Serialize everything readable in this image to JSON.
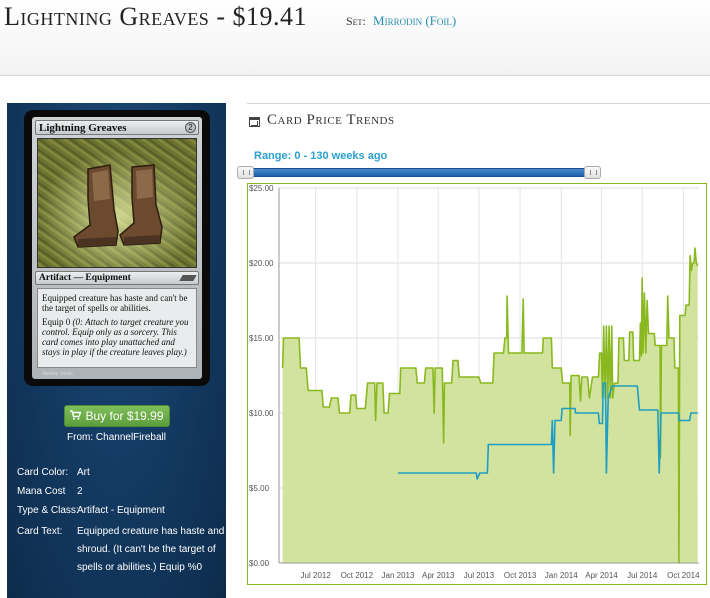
{
  "header": {
    "title": "Lightning Greaves - $19.41",
    "set_label": "Set:",
    "set_name": "Mirrodin (Foil)"
  },
  "card_image": {
    "name": "Lightning Greaves",
    "type_line": "Artifact — Equipment",
    "rules_text": "Equipped creature has haste and can't be the target of spells or abilities.",
    "equip_cost": "Equip 0",
    "equip_reminder": "(0: Attach to target creature you control. Equip only as a sorcery. This card comes into play unattached and stays in play if the creature leaves play.)",
    "artist": "Jeremy Jarvis",
    "mana_symbol": "2"
  },
  "buy": {
    "label": "Buy for $19.99",
    "icon": "cart-icon",
    "from": "From: ChannelFireball"
  },
  "info": [
    {
      "label": "Card Color:",
      "value": "Art"
    },
    {
      "label": "Mana Cost",
      "value": "2"
    },
    {
      "label": "Type & Class:",
      "value": "Artifact - Equipment"
    },
    {
      "label": "Card Text:",
      "value": "Equipped creature has haste and shroud. (It can't be the target of spells or abilities.) Equip %0"
    }
  ],
  "trends": {
    "title": "Card Price Trends",
    "icon": "calendar-icon",
    "range_label": "Range: 0 - 130 weeks ago",
    "slider_range": [
      0,
      130
    ]
  },
  "colors": {
    "sidebar": "#12375d",
    "fill": "#d2e39f",
    "line_green": "#8ab81f",
    "line_blue": "#1f9ec4",
    "link": "#2a8db0",
    "buy_button": "#6aad45"
  },
  "chart_data": {
    "type": "area",
    "x_unit": "date",
    "xlim": [
      "2012-04-10",
      "2014-11-05"
    ],
    "ylim": [
      0,
      25
    ],
    "y_ticks": [
      "$0.00",
      "$5.00",
      "$10.00",
      "$15.00",
      "$20.00",
      "$25.00"
    ],
    "x_ticks": [
      {
        "date": "2012-07-01",
        "label": "Jul 2012"
      },
      {
        "date": "2012-10-01",
        "label": "Oct 2012"
      },
      {
        "date": "2013-01-01",
        "label": "Jan 2013"
      },
      {
        "date": "2013-04-01",
        "label": "Apr 2013"
      },
      {
        "date": "2013-07-01",
        "label": "Jul 2013"
      },
      {
        "date": "2013-10-01",
        "label": "Oct 2013"
      },
      {
        "date": "2014-01-01",
        "label": "Jan 2014"
      },
      {
        "date": "2014-04-01",
        "label": "Apr 2014"
      },
      {
        "date": "2014-07-01",
        "label": "Jul 2014"
      },
      {
        "date": "2014-10-01",
        "label": "Oct 2014"
      }
    ],
    "grid": true,
    "series": [
      {
        "color": "#8ab81f",
        "fill": "#d2e39f",
        "points": [
          [
            "2012-04-18",
            13
          ],
          [
            "2012-04-20",
            15
          ],
          [
            "2012-05-25",
            15
          ],
          [
            "2012-05-28",
            13
          ],
          [
            "2012-06-10",
            13
          ],
          [
            "2012-06-14",
            11.5
          ],
          [
            "2012-07-15",
            11.5
          ],
          [
            "2012-07-18",
            10.4
          ],
          [
            "2012-08-01",
            10.4
          ],
          [
            "2012-08-05",
            11
          ],
          [
            "2012-08-20",
            11
          ],
          [
            "2012-08-23",
            10
          ],
          [
            "2012-09-15",
            10
          ],
          [
            "2012-09-18",
            11.2
          ],
          [
            "2012-09-28",
            11.2
          ],
          [
            "2012-10-01",
            10.3
          ],
          [
            "2012-10-20",
            10.3
          ],
          [
            "2012-10-25",
            12
          ],
          [
            "2012-11-10",
            12
          ],
          [
            "2012-11-12",
            9.5
          ],
          [
            "2012-11-15",
            12
          ],
          [
            "2012-11-28",
            12
          ],
          [
            "2012-12-01",
            10
          ],
          [
            "2012-12-10",
            10
          ],
          [
            "2012-12-13",
            11.3
          ],
          [
            "2013-01-05",
            11.3
          ],
          [
            "2013-01-07",
            13
          ],
          [
            "2013-02-10",
            13
          ],
          [
            "2013-02-13",
            12
          ],
          [
            "2013-03-01",
            12
          ],
          [
            "2013-03-04",
            13
          ],
          [
            "2013-03-20",
            13
          ],
          [
            "2013-03-23",
            10
          ],
          [
            "2013-03-25",
            13
          ],
          [
            "2013-04-10",
            13
          ],
          [
            "2013-04-13",
            8
          ],
          [
            "2013-04-15",
            12
          ],
          [
            "2013-05-01",
            12
          ],
          [
            "2013-05-04",
            13.5
          ],
          [
            "2013-05-15",
            13.5
          ],
          [
            "2013-05-18",
            12.4
          ],
          [
            "2013-07-01",
            12.4
          ],
          [
            "2013-07-05",
            12
          ],
          [
            "2013-08-01",
            12
          ],
          [
            "2013-08-04",
            14
          ],
          [
            "2013-08-25",
            14
          ],
          [
            "2013-08-28",
            15
          ],
          [
            "2013-09-01",
            15
          ],
          [
            "2013-09-02",
            17.8
          ],
          [
            "2013-09-05",
            14
          ],
          [
            "2013-10-05",
            14
          ],
          [
            "2013-10-08",
            17.6
          ],
          [
            "2013-10-10",
            14
          ],
          [
            "2013-11-20",
            14
          ],
          [
            "2013-11-22",
            15
          ],
          [
            "2013-12-10",
            15
          ],
          [
            "2013-12-12",
            13
          ],
          [
            "2014-01-01",
            13
          ],
          [
            "2014-01-04",
            12
          ],
          [
            "2014-01-20",
            12
          ],
          [
            "2014-01-21",
            8.5
          ],
          [
            "2014-01-23",
            12.5
          ],
          [
            "2014-02-10",
            12.5
          ],
          [
            "2014-02-13",
            10.8
          ],
          [
            "2014-02-16",
            12.4
          ],
          [
            "2014-03-01",
            12.4
          ],
          [
            "2014-03-05",
            11
          ],
          [
            "2014-03-12",
            12.4
          ],
          [
            "2014-03-25",
            12.4
          ],
          [
            "2014-03-28",
            14
          ],
          [
            "2014-04-01",
            14
          ],
          [
            "2014-04-03",
            11
          ],
          [
            "2014-04-06",
            15.8
          ],
          [
            "2014-04-09",
            11
          ],
          [
            "2014-04-12",
            15.8
          ],
          [
            "2014-04-15",
            11
          ],
          [
            "2014-04-18",
            15.8
          ],
          [
            "2014-04-21",
            11
          ],
          [
            "2014-04-24",
            15.8
          ],
          [
            "2014-04-26",
            11
          ],
          [
            "2014-04-30",
            12
          ],
          [
            "2014-05-08",
            12
          ],
          [
            "2014-05-10",
            15
          ],
          [
            "2014-05-20",
            15
          ],
          [
            "2014-05-22",
            13.5
          ],
          [
            "2014-06-01",
            13.5
          ],
          [
            "2014-06-03",
            15.4
          ],
          [
            "2014-06-10",
            15.4
          ],
          [
            "2014-06-12",
            13.5
          ],
          [
            "2014-06-25",
            13.5
          ],
          [
            "2014-06-27",
            16
          ],
          [
            "2014-06-29",
            13.8
          ],
          [
            "2014-07-01",
            19
          ],
          [
            "2014-07-03",
            14
          ],
          [
            "2014-07-06",
            18
          ],
          [
            "2014-07-09",
            14
          ],
          [
            "2014-07-12",
            17.5
          ],
          [
            "2014-07-15",
            15.3
          ],
          [
            "2014-07-28",
            15.3
          ],
          [
            "2014-07-30",
            14.5
          ],
          [
            "2014-08-10",
            14.5
          ],
          [
            "2014-08-11",
            7
          ],
          [
            "2014-08-13",
            14.5
          ],
          [
            "2014-08-25",
            14.5
          ],
          [
            "2014-08-27",
            17.8
          ],
          [
            "2014-08-30",
            15
          ],
          [
            "2014-09-10",
            15
          ],
          [
            "2014-09-12",
            13
          ],
          [
            "2014-09-20",
            13
          ],
          [
            "2014-09-21",
            0
          ],
          [
            "2014-09-23",
            16.5
          ],
          [
            "2014-10-05",
            16.5
          ],
          [
            "2014-10-07",
            17.2
          ],
          [
            "2014-10-14",
            17.2
          ],
          [
            "2014-10-16",
            20.5
          ],
          [
            "2014-10-19",
            19.5
          ],
          [
            "2014-10-22",
            20
          ],
          [
            "2014-10-25",
            20
          ],
          [
            "2014-10-27",
            21
          ],
          [
            "2014-10-30",
            20
          ],
          [
            "2014-11-02",
            19.8
          ]
        ]
      },
      {
        "color": "#1f9ec4",
        "points": [
          [
            "2013-01-01",
            6
          ],
          [
            "2013-06-25",
            6
          ],
          [
            "2013-06-27",
            5.6
          ],
          [
            "2013-07-03",
            6
          ],
          [
            "2013-07-20",
            6
          ],
          [
            "2013-07-22",
            7.9
          ],
          [
            "2013-12-10",
            7.9
          ],
          [
            "2013-12-12",
            9.5
          ],
          [
            "2013-12-15",
            6
          ],
          [
            "2013-12-18",
            9.5
          ],
          [
            "2014-01-01",
            9.5
          ],
          [
            "2014-01-03",
            10.3
          ],
          [
            "2014-02-01",
            10.3
          ],
          [
            "2014-02-02",
            10
          ],
          [
            "2014-03-25",
            10
          ],
          [
            "2014-03-27",
            9.3
          ],
          [
            "2014-04-03",
            9.3
          ],
          [
            "2014-04-05",
            12
          ],
          [
            "2014-04-10",
            12
          ],
          [
            "2014-04-12",
            6
          ],
          [
            "2014-04-16",
            11
          ],
          [
            "2014-04-25",
            11.8
          ],
          [
            "2014-06-20",
            11.8
          ],
          [
            "2014-06-25",
            10.2
          ],
          [
            "2014-08-05",
            10.2
          ],
          [
            "2014-08-08",
            6
          ],
          [
            "2014-08-12",
            10
          ],
          [
            "2014-09-20",
            10
          ],
          [
            "2014-09-22",
            9.5
          ],
          [
            "2014-10-15",
            9.5
          ],
          [
            "2014-10-18",
            10
          ],
          [
            "2014-11-02",
            10
          ]
        ]
      }
    ]
  }
}
